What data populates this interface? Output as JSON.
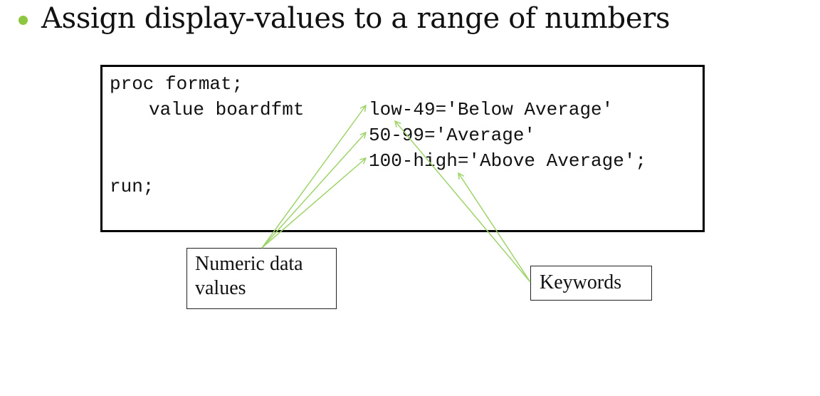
{
  "slide": {
    "bullet_text": "Assign display-values to a range of numbers"
  },
  "code": {
    "line1": "proc format;",
    "line2": "value boardfmt",
    "range1": "low-49='Below Average'",
    "range2": "50-99='Average'",
    "range3": "100-high='Above Average';",
    "line_run": "run;"
  },
  "callouts": {
    "numeric_line1": "Numeric data",
    "numeric_line2": "values",
    "keywords": "Keywords"
  },
  "colors": {
    "bullet": "#8dc63f",
    "arrow": "#9fd36b",
    "border": "#000000"
  }
}
